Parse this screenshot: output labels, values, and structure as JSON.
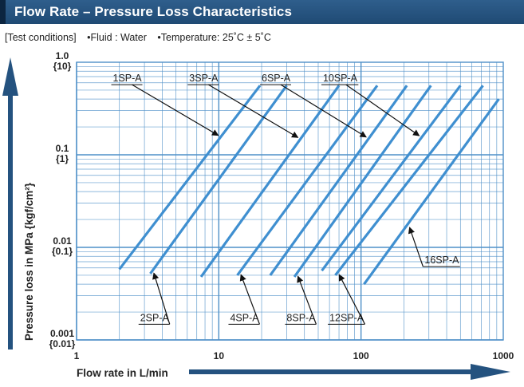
{
  "header": {
    "title": "Flow Rate – Pressure Loss Characteristics"
  },
  "conditions": {
    "bracket": "[Test conditions]",
    "fluid": "•Fluid : Water",
    "temperature": "•Temperature: 25˚C ± 5˚C"
  },
  "colors": {
    "header": "#24527f",
    "line": "#3f8fd0",
    "grid": "#4f90c8",
    "arrow": "#24527f"
  },
  "chart_data": {
    "type": "line",
    "xlabel": "Flow rate in L/min",
    "ylabel": "Pressure loss in MPa {kgf/cm²}",
    "xscale": "log",
    "yscale": "log",
    "xlim": [
      1,
      1000
    ],
    "ylim": [
      0.001,
      1.0
    ],
    "grid": true,
    "x_ticks": [
      {
        "value": 1,
        "label": "1"
      },
      {
        "value": 10,
        "label": "10"
      },
      {
        "value": 100,
        "label": "100"
      },
      {
        "value": 1000,
        "label": "1000"
      }
    ],
    "y_ticks": [
      {
        "value": 1.0,
        "label": "1.0",
        "label2": "{10}"
      },
      {
        "value": 0.1,
        "label": "0.1",
        "label2": "{1}"
      },
      {
        "value": 0.01,
        "label": "0.01",
        "label2": "{0.1}"
      },
      {
        "value": 0.001,
        "label": "0.001",
        "label2": "{0.01}"
      }
    ],
    "series": [
      {
        "name": "1SP-A",
        "x": [
          2.0,
          19.5
        ],
        "y": [
          0.0058,
          0.56
        ]
      },
      {
        "name": "2SP-A",
        "x": [
          3.3,
          30.0
        ],
        "y": [
          0.0052,
          0.56
        ]
      },
      {
        "name": "3SP-A",
        "x": [
          7.5,
          70.0
        ],
        "y": [
          0.0048,
          0.56
        ]
      },
      {
        "name": "4SP-A",
        "x": [
          13.5,
          130.0
        ],
        "y": [
          0.005,
          0.56
        ]
      },
      {
        "name": "6SP-A",
        "x": [
          23.0,
          210.0
        ],
        "y": [
          0.005,
          0.56
        ]
      },
      {
        "name": "8SP-A",
        "x": [
          34.0,
          310.0
        ],
        "y": [
          0.0048,
          0.56
        ]
      },
      {
        "name": "10SP-A",
        "x": [
          53.0,
          500.0
        ],
        "y": [
          0.0056,
          0.56
        ]
      },
      {
        "name": "12SP-A",
        "x": [
          66.0,
          720.0
        ],
        "y": [
          0.005,
          0.56
        ]
      },
      {
        "name": "16SP-A",
        "x": [
          105.0,
          930.0
        ],
        "y": [
          0.004,
          0.4
        ]
      }
    ],
    "annotations": [
      {
        "series": "1SP-A",
        "label": "1SP-A",
        "label_x": 1.8,
        "label_y": 0.62,
        "pos": "above"
      },
      {
        "series": "2SP-A",
        "label": "2SP-A",
        "label_x": 2.8,
        "label_y": 0.0016,
        "pos": "below"
      },
      {
        "series": "3SP-A",
        "label": "3SP-A",
        "label_x": 6.2,
        "label_y": 0.62,
        "pos": "above"
      },
      {
        "series": "4SP-A",
        "label": "4SP-A",
        "label_x": 12.0,
        "label_y": 0.0016,
        "pos": "below"
      },
      {
        "series": "6SP-A",
        "label": "6SP-A",
        "label_x": 20.0,
        "label_y": 0.62,
        "pos": "above"
      },
      {
        "series": "8SP-A",
        "label": "8SP-A",
        "label_x": 30.0,
        "label_y": 0.0016,
        "pos": "below"
      },
      {
        "series": "10SP-A",
        "label": "10SP-A",
        "label_x": 54.0,
        "label_y": 0.62,
        "pos": "above"
      },
      {
        "series": "12SP-A",
        "label": "12SP-A",
        "label_x": 60.0,
        "label_y": 0.0016,
        "pos": "below"
      },
      {
        "series": "16SP-A",
        "label": "16SP-A",
        "label_x": 280.0,
        "label_y": 0.0067,
        "pos": "right"
      }
    ]
  }
}
